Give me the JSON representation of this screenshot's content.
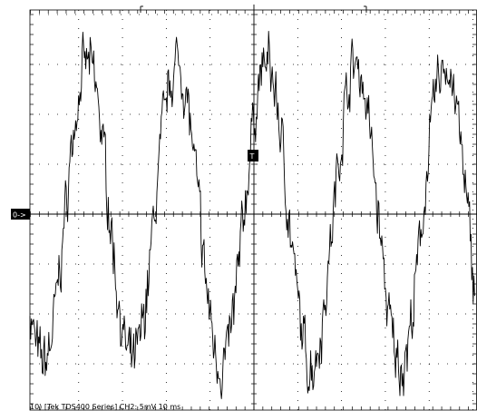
{
  "chart_data": {
    "type": "line",
    "instrument": "Tek TDS400 Series",
    "channel": "CH2",
    "volts_per_div": "5mV",
    "time_per_div": "10 ms",
    "status_line": "10) [Tek TDS400 Series] CH2: 5mV  10 ms",
    "ground_marker": "0->",
    "trigger_marker": "T",
    "x_unit": "ms",
    "y_unit": "mV",
    "x_range": [
      -50,
      50
    ],
    "y_range": [
      -20,
      20
    ],
    "grid": true,
    "divisions": {
      "x": 10,
      "y": 8
    },
    "series": [
      {
        "frequency_hz": 50,
        "amplitude_mv": 15,
        "phase_at_trigger_deg": 40,
        "noise_mv": 2.5,
        "x": [
          -50,
          -45,
          -40,
          -35,
          -30,
          -25,
          -20,
          -15,
          -10,
          -5,
          0,
          5,
          10,
          15,
          20,
          25,
          30,
          35,
          40,
          45,
          50
        ],
        "y": [
          -15,
          -9,
          1,
          11,
          15,
          12,
          3,
          -7,
          -14,
          -13,
          10,
          14,
          13,
          3,
          -8,
          -15,
          -13,
          -3,
          8,
          14,
          -6
        ]
      }
    ]
  }
}
